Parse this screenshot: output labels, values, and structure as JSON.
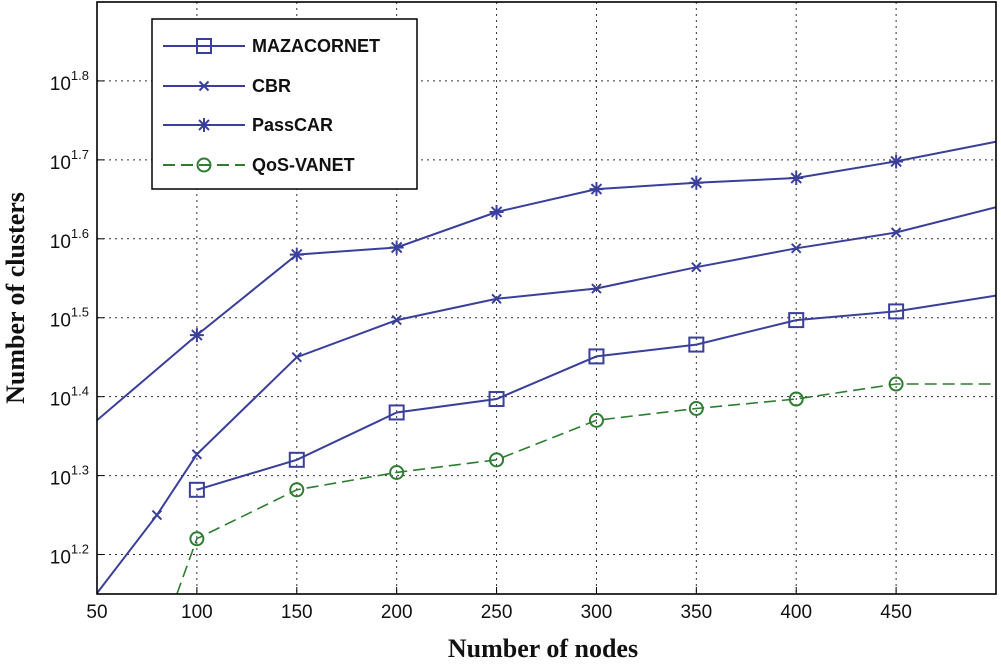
{
  "chart_data": {
    "type": "line",
    "title": "",
    "xlabel": "Number of nodes",
    "ylabel": "Number of clusters",
    "y_scale": "log10",
    "xlim": [
      50,
      500
    ],
    "ylim_exponent": [
      1.15,
      1.9
    ],
    "grid": true,
    "legend_position": "top-left",
    "x_ticks": [
      {
        "value": 50,
        "label": "50"
      },
      {
        "value": 100,
        "label": "100"
      },
      {
        "value": 150,
        "label": "150"
      },
      {
        "value": 200,
        "label": "200"
      },
      {
        "value": 250,
        "label": "250"
      },
      {
        "value": 300,
        "label": "300"
      },
      {
        "value": 350,
        "label": "350"
      },
      {
        "value": 400,
        "label": "400"
      },
      {
        "value": 450,
        "label": "450"
      }
    ],
    "y_ticks": [
      {
        "value": 1.2,
        "base": "10",
        "exp": "1.2"
      },
      {
        "value": 1.3,
        "base": "10",
        "exp": "1.3"
      },
      {
        "value": 1.4,
        "base": "10",
        "exp": "1.4"
      },
      {
        "value": 1.5,
        "base": "10",
        "exp": "1.5"
      },
      {
        "value": 1.6,
        "base": "10",
        "exp": "1.6"
      },
      {
        "value": 1.7,
        "base": "10",
        "exp": "1.7"
      },
      {
        "value": 1.8,
        "base": "10",
        "exp": "1.8"
      }
    ],
    "series": [
      {
        "name": "MAZACORNET",
        "color": "#3a3f9a",
        "marker": "square",
        "dash": "solid",
        "x": [
          100,
          150,
          200,
          250,
          300,
          350,
          400,
          450,
          500
        ],
        "values": [
          1.282,
          1.32,
          1.38,
          1.397,
          1.451,
          1.466,
          1.497,
          1.508,
          1.528
        ]
      },
      {
        "name": "CBR",
        "color": "#3a3f9a",
        "marker": "x",
        "dash": "solid",
        "x": [
          50,
          80,
          100,
          150,
          200,
          250,
          300,
          350,
          400,
          450,
          500
        ],
        "values": [
          1.151,
          1.25,
          1.327,
          1.45,
          1.497,
          1.524,
          1.537,
          1.564,
          1.588,
          1.608,
          1.64
        ]
      },
      {
        "name": "PassCAR",
        "color": "#3a3f9a",
        "marker": "asterisk",
        "dash": "solid",
        "x": [
          50,
          100,
          150,
          200,
          250,
          300,
          350,
          400,
          450,
          500
        ],
        "values": [
          1.37,
          1.478,
          1.58,
          1.589,
          1.634,
          1.663,
          1.671,
          1.677,
          1.698,
          1.723
        ]
      },
      {
        "name": "QoS-VANET",
        "color": "#2e7d32",
        "marker": "circle",
        "dash": "dashed",
        "x": [
          90,
          100,
          150,
          200,
          250,
          300,
          350,
          400,
          450,
          500
        ],
        "values": [
          1.15,
          1.22,
          1.282,
          1.304,
          1.32,
          1.37,
          1.385,
          1.397,
          1.416,
          1.416
        ]
      }
    ]
  }
}
